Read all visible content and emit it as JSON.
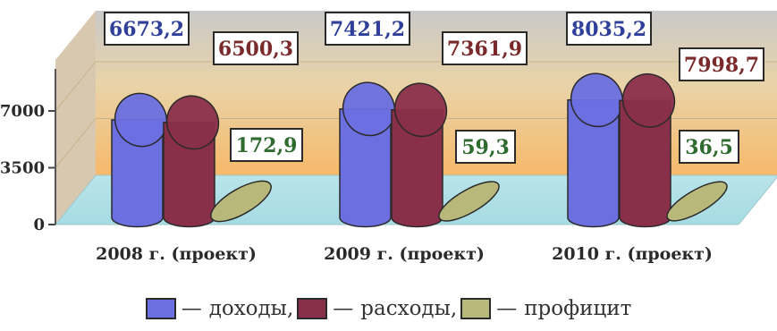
{
  "chart_data": {
    "type": "bar",
    "style": "3d-cylinder",
    "title": "",
    "xlabel": "",
    "ylabel": "",
    "ylim": [
      0,
      10500
    ],
    "yticks": [
      "0",
      "3500",
      "7000"
    ],
    "categories": [
      "2008 г. (проект)",
      "2009 г. (проект)",
      "2010 г. (проект)"
    ],
    "series": [
      {
        "name": "доходы",
        "color": "#6b6fe0",
        "values": [
          6673.2,
          7421.2,
          8035.2
        ],
        "labels": [
          "6673,2",
          "7421,2",
          "8035,2"
        ],
        "label_color": "#2f3f9a"
      },
      {
        "name": "расходы",
        "color": "#8a2f4a",
        "values": [
          6500.3,
          7361.9,
          7998.7
        ],
        "labels": [
          "6500,3",
          "7361,9",
          "7998,7"
        ],
        "label_color": "#7a2a2a"
      },
      {
        "name": "профицит",
        "color": "#b8b87a",
        "values": [
          172.9,
          59.3,
          36.5
        ],
        "labels": [
          "172,9",
          "59,3",
          "36,5"
        ],
        "label_color": "#2f6a2f"
      }
    ],
    "legend_position": "bottom",
    "grid": true
  },
  "legend": {
    "dash": "—",
    "items": [
      {
        "text": "доходы,",
        "color": "#6b6fe0"
      },
      {
        "text": "расходы,",
        "color": "#8a2f4a"
      },
      {
        "text": "профицит",
        "color": "#b8b87a"
      }
    ]
  }
}
